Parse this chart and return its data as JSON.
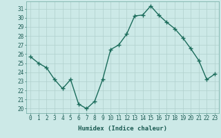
{
  "x": [
    0,
    1,
    2,
    3,
    4,
    5,
    6,
    7,
    8,
    9,
    10,
    11,
    12,
    13,
    14,
    15,
    16,
    17,
    18,
    19,
    20,
    21,
    22,
    23
  ],
  "y": [
    25.7,
    25.0,
    24.5,
    23.2,
    22.2,
    23.2,
    20.5,
    20.0,
    20.8,
    23.2,
    26.5,
    27.0,
    28.2,
    30.2,
    30.3,
    31.3,
    30.3,
    29.5,
    28.8,
    27.8,
    26.6,
    25.3,
    23.2,
    23.8
  ],
  "line_color": "#1a6b5a",
  "marker": "+",
  "marker_size": 4,
  "line_width": 1.0,
  "bg_color": "#cce9e7",
  "grid_color": "#b0d0cd",
  "xlabel": "Humidex (Indice chaleur)",
  "ylabel_ticks": [
    20,
    21,
    22,
    23,
    24,
    25,
    26,
    27,
    28,
    29,
    30,
    31
  ],
  "ylim": [
    19.5,
    31.8
  ],
  "xlim": [
    -0.5,
    23.5
  ],
  "tick_fontsize": 5.5,
  "xlabel_fontsize": 6.5
}
